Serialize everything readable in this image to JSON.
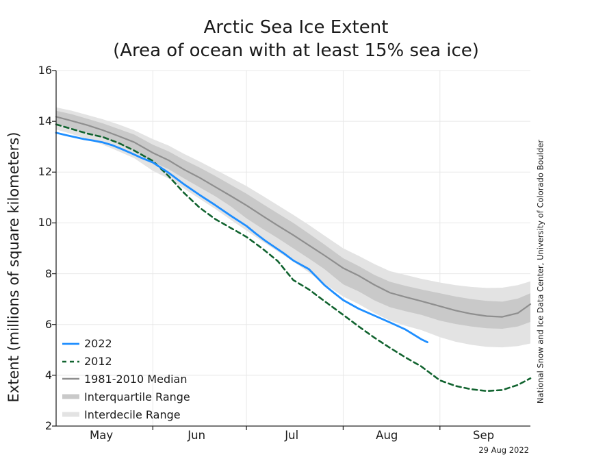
{
  "annotations": {
    "credit": "National Snow and Ice Data Center, University of Colorado Boulder",
    "date": "29 Aug 2022"
  },
  "chart_data": {
    "type": "line",
    "title": "Arctic Sea Ice Extent",
    "subtitle": "(Area of ocean with at least 15% sea ice)",
    "xlabel": "",
    "ylabel": "Extent (millions of square kilometers)",
    "ylim": [
      2,
      16
    ],
    "yticks": [
      2,
      4,
      6,
      8,
      10,
      12,
      14,
      16
    ],
    "x_unit": "days since 1 May",
    "xlim": [
      0,
      152
    ],
    "grid": true,
    "legend_position": "lower left",
    "xtick_gridline_days": [
      31,
      61,
      92,
      123
    ],
    "xtick_labels": [
      {
        "label": "May",
        "day": 14.5
      },
      {
        "label": "Jun",
        "day": 45
      },
      {
        "label": "Jul",
        "day": 75.5
      },
      {
        "label": "Aug",
        "day": 106
      },
      {
        "label": "Sep",
        "day": 137
      }
    ],
    "stat_days": [
      0,
      5,
      10,
      15,
      20,
      25,
      31,
      36,
      41,
      46,
      51,
      56,
      61,
      66,
      71,
      76,
      81,
      86,
      92,
      97,
      102,
      107,
      112,
      117,
      123,
      128,
      133,
      138,
      143,
      148,
      152
    ],
    "bands": [
      {
        "name": "Interdecile Range",
        "color": "#e3e3e3",
        "high": [
          14.55,
          14.42,
          14.25,
          14.08,
          13.88,
          13.65,
          13.3,
          13.05,
          12.72,
          12.42,
          12.1,
          11.78,
          11.45,
          11.08,
          10.7,
          10.32,
          9.92,
          9.5,
          9.0,
          8.7,
          8.38,
          8.1,
          7.95,
          7.8,
          7.65,
          7.55,
          7.48,
          7.44,
          7.45,
          7.55,
          7.7
        ],
        "low": [
          13.68,
          13.5,
          13.3,
          13.08,
          12.82,
          12.55,
          12.05,
          11.75,
          11.35,
          10.95,
          10.55,
          10.12,
          9.7,
          9.28,
          8.88,
          8.48,
          8.05,
          7.6,
          7.1,
          6.8,
          6.45,
          6.15,
          5.95,
          5.78,
          5.5,
          5.32,
          5.2,
          5.12,
          5.1,
          5.15,
          5.25
        ]
      },
      {
        "name": "Interquartile Range",
        "color": "#c9c9c9",
        "high": [
          14.42,
          14.28,
          14.1,
          13.92,
          13.7,
          13.48,
          13.08,
          12.82,
          12.48,
          12.18,
          11.85,
          11.5,
          11.15,
          10.76,
          10.38,
          10.0,
          9.58,
          9.15,
          8.61,
          8.3,
          7.95,
          7.68,
          7.52,
          7.38,
          7.23,
          7.1,
          7.0,
          6.93,
          6.9,
          7.02,
          7.23
        ],
        "low": [
          13.9,
          13.72,
          13.55,
          13.35,
          13.1,
          12.85,
          12.4,
          12.12,
          11.75,
          11.4,
          11.05,
          10.65,
          10.18,
          9.78,
          9.4,
          9.0,
          8.6,
          8.18,
          7.58,
          7.3,
          6.95,
          6.68,
          6.52,
          6.38,
          6.15,
          6.02,
          5.92,
          5.85,
          5.83,
          5.92,
          6.1
        ]
      }
    ],
    "series": [
      {
        "name": "1981-2010 Median",
        "color": "#8e8e8e",
        "dash": null,
        "width": 2.2,
        "days": [
          0,
          5,
          10,
          15,
          20,
          25,
          31,
          36,
          41,
          46,
          51,
          56,
          61,
          66,
          71,
          76,
          81,
          86,
          92,
          97,
          102,
          107,
          112,
          117,
          123,
          128,
          133,
          138,
          143,
          148,
          152
        ],
        "values": [
          14.18,
          14.02,
          13.85,
          13.65,
          13.42,
          13.18,
          12.76,
          12.47,
          12.1,
          11.78,
          11.42,
          11.06,
          10.69,
          10.29,
          9.9,
          9.52,
          9.12,
          8.72,
          8.22,
          7.92,
          7.56,
          7.25,
          7.08,
          6.92,
          6.72,
          6.55,
          6.42,
          6.33,
          6.3,
          6.45,
          6.8
        ]
      },
      {
        "name": "2012",
        "color": "#11632f",
        "dash": [
          7,
          5
        ],
        "width": 2.6,
        "days": [
          0,
          5,
          10,
          15,
          20,
          25,
          31,
          36,
          41,
          46,
          51,
          56,
          61,
          66,
          71,
          76,
          81,
          86,
          92,
          97,
          102,
          107,
          112,
          117,
          123,
          128,
          133,
          138,
          143,
          148,
          152
        ],
        "values": [
          13.88,
          13.7,
          13.52,
          13.38,
          13.15,
          12.85,
          12.44,
          11.85,
          11.18,
          10.6,
          10.15,
          9.8,
          9.45,
          9.0,
          8.5,
          7.75,
          7.38,
          6.92,
          6.38,
          5.92,
          5.48,
          5.08,
          4.7,
          4.35,
          3.8,
          3.58,
          3.45,
          3.38,
          3.42,
          3.62,
          3.88
        ]
      },
      {
        "name": "2022",
        "color": "#1e8eff",
        "dash": null,
        "width": 2.8,
        "days": [
          0,
          3,
          6,
          9,
          12,
          15,
          18,
          21,
          24,
          27,
          31,
          36,
          41,
          46,
          51,
          56,
          61,
          64,
          67,
          70,
          73,
          76,
          81,
          86,
          89,
          92,
          97,
          102,
          107,
          112,
          117,
          119
        ],
        "values": [
          13.55,
          13.46,
          13.38,
          13.3,
          13.24,
          13.17,
          13.06,
          12.91,
          12.75,
          12.58,
          12.38,
          11.98,
          11.52,
          11.1,
          10.7,
          10.28,
          9.88,
          9.58,
          9.3,
          9.05,
          8.8,
          8.52,
          8.18,
          7.55,
          7.25,
          6.96,
          6.62,
          6.35,
          6.08,
          5.8,
          5.42,
          5.3
        ]
      }
    ],
    "legend_order": [
      "2022",
      "2012",
      "1981-2010 Median",
      "Interquartile Range",
      "Interdecile Range"
    ],
    "style_colors": {
      "grid": "#e8e8e8",
      "axis": "#262626",
      "text": "#1a1a1a"
    }
  }
}
